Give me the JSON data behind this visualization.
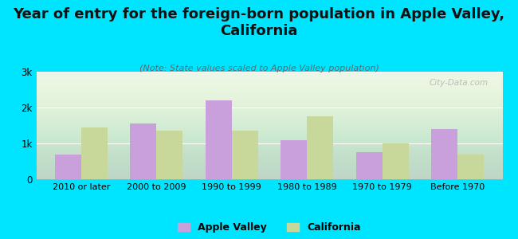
{
  "categories": [
    "2010 or later",
    "2000 to 2009",
    "1990 to 1999",
    "1980 to 1989",
    "1970 to 1979",
    "Before 1970"
  ],
  "apple_valley": [
    700,
    1550,
    2200,
    1100,
    750,
    1400
  ],
  "california": [
    1450,
    1350,
    1350,
    1750,
    1000,
    700
  ],
  "apple_valley_color": "#c9a0dc",
  "california_color": "#c8d89a",
  "background_color": "#00e5ff",
  "title": "Year of entry for the foreign-born population in Apple Valley,\nCalifornia",
  "subtitle": "(Note: State values scaled to Apple Valley population)",
  "ylabel_ticks": [
    "0",
    "1k",
    "2k",
    "3k"
  ],
  "ytick_values": [
    0,
    1000,
    2000,
    3000
  ],
  "ylim": [
    0,
    3000
  ],
  "title_fontsize": 13,
  "subtitle_fontsize": 8.0,
  "watermark": "City-Data.com",
  "legend_apple_valley": "Apple Valley",
  "legend_california": "California"
}
